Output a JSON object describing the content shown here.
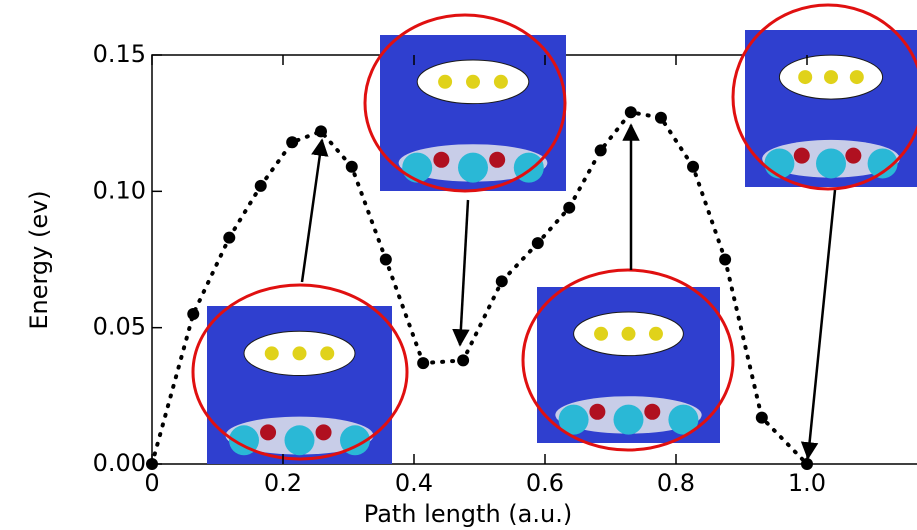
{
  "chart_data": {
    "type": "scatter",
    "xlabel": "Path length (a.u.)",
    "ylabel": "Energy (ev)",
    "x": [
      0,
      0.063,
      0.118,
      0.166,
      0.214,
      0.258,
      0.305,
      0.357,
      0.414,
      0.475,
      0.534,
      0.589,
      0.637,
      0.685,
      0.731,
      0.777,
      0.826,
      0.875,
      0.931,
      1.0
    ],
    "series": [
      {
        "color": "#000000",
        "values": [
          0,
          0.055,
          0.083,
          0.102,
          0.118,
          0.122,
          0.109,
          0.075,
          0.037,
          0.038,
          0.067,
          0.081,
          0.094,
          0.115,
          0.129,
          0.127,
          0.109,
          0.075,
          0.017,
          0
        ]
      }
    ],
    "xlim": [
      0,
      1.165
    ],
    "ylim": [
      0,
      0.15
    ],
    "xticks": [
      0,
      0.2,
      0.4,
      0.6,
      0.8,
      {
        "value": 1,
        "label": "1.0"
      }
    ],
    "yticks": [
      {
        "value": 0,
        "label": "0.00"
      },
      {
        "value": 0.05,
        "label": "0.05"
      },
      {
        "value": 0.1,
        "label": "0.10"
      },
      {
        "value": 0.15,
        "label": "0.15"
      }
    ],
    "line_style": "dotted"
  }
}
